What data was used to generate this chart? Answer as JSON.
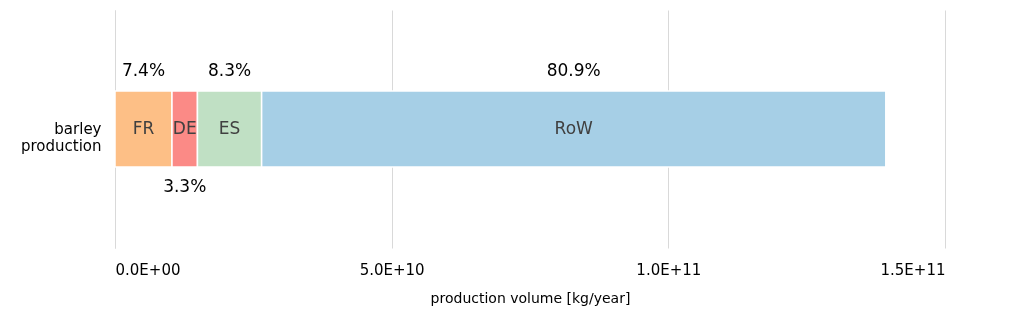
{
  "chart_data": {
    "type": "bar",
    "orientation": "horizontal",
    "stacked": true,
    "categories": [
      "barley production"
    ],
    "series": [
      {
        "name": "FR",
        "color": "#fdbf86",
        "values": [
          10300000000.0
        ]
      },
      {
        "name": "DE",
        "color": "#fb8a86",
        "values": [
          4600000000.0
        ]
      },
      {
        "name": "ES",
        "color": "#c0e0c4",
        "values": [
          11600000000.0
        ]
      },
      {
        "name": "RoW",
        "color": "#a6cfe6",
        "values": [
          112800000000.0
        ]
      }
    ],
    "annotations": [
      "7.4%",
      "3.3%",
      "8.3%",
      "80.9%"
    ],
    "xlabel": "production volume [kg/year]",
    "xlim": [
      0,
      150000000000.0
    ],
    "xticks": [
      {
        "value": 0,
        "label": "0.0E+00"
      },
      {
        "value": 50000000000.0,
        "label": "5.0E+10"
      },
      {
        "value": 100000000000.0,
        "label": "1.0E+11"
      },
      {
        "value": 150000000000.0,
        "label": "1.5E+11"
      }
    ],
    "grid": "x",
    "legend": false
  }
}
